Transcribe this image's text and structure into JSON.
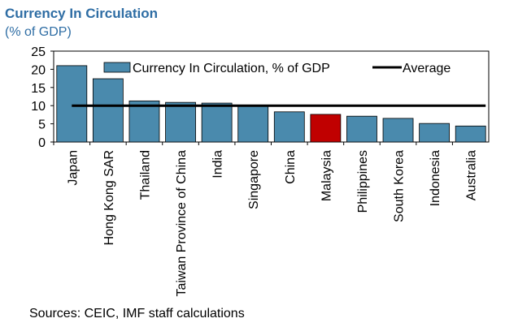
{
  "chart_data": {
    "type": "bar",
    "title": "Currency In Circulation",
    "subtitle": "(% of GDP)",
    "categories": [
      "Japan",
      "Hong Kong SAR",
      "Thailand",
      "Taiwan Province of China",
      "India",
      "Singapore",
      "China",
      "Malaysia",
      "Philippines",
      "South Korea",
      "Indonesia",
      "Australia"
    ],
    "series": [
      {
        "name": "Currency In Circulation, % of GDP",
        "values": [
          21.0,
          17.4,
          11.3,
          10.9,
          10.7,
          10.1,
          8.3,
          7.6,
          7.1,
          6.5,
          5.1,
          4.4
        ]
      },
      {
        "name": "Average",
        "type": "line",
        "value": 10.0
      }
    ],
    "highlight": "Malaysia",
    "yticks": [
      0,
      5,
      10,
      15,
      20,
      25
    ],
    "ylim": [
      0,
      25
    ],
    "legend_position": "top",
    "grid": false
  },
  "colors": {
    "bar": "#4a8aad",
    "highlight": "#c00000",
    "average_line": "#000000",
    "title": "#2e6da4"
  },
  "source": "Sources: CEIC, IMF staff calculations"
}
